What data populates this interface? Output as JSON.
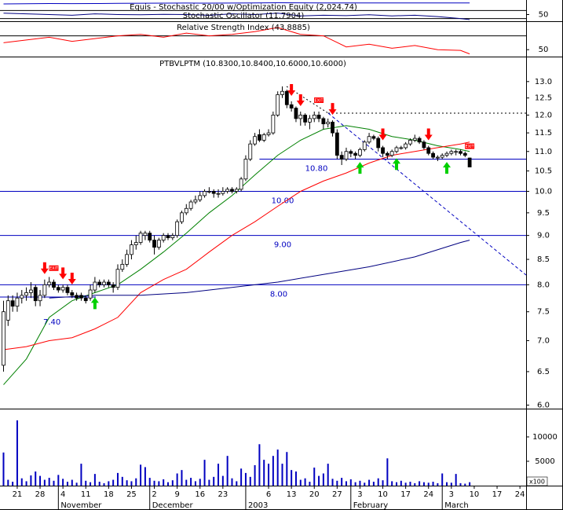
{
  "chart_data": {
    "type": "candlestick",
    "title": "PTBVLPTM (10.8300,10.8400,10.6000,10.6000)",
    "log_scale": true,
    "up_color": "#ffffff",
    "down_color": "#000000",
    "xlim": [
      -0.77,
      114.35
    ],
    "ylim": [
      5.95,
      13.8
    ],
    "yticks": [
      {
        "value": 6,
        "label": "6.0"
      },
      {
        "value": 6.5,
        "label": "6.5"
      },
      {
        "value": 7,
        "label": "7.0"
      },
      {
        "value": 7.5,
        "label": "7.5"
      },
      {
        "value": 8,
        "label": "8.0"
      },
      {
        "value": 8.5,
        "label": "8.5"
      },
      {
        "value": 9,
        "label": "9.0"
      },
      {
        "value": 9.5,
        "label": "9.5"
      },
      {
        "value": 10,
        "label": "10.0"
      },
      {
        "value": 10.5,
        "label": "10.5"
      },
      {
        "value": 11,
        "label": "11.0"
      },
      {
        "value": 11.5,
        "label": "11.5"
      },
      {
        "value": 12,
        "label": "12.0"
      },
      {
        "value": 12.5,
        "label": "12.5"
      },
      {
        "value": 13,
        "label": "13.0"
      }
    ],
    "xticks": [
      {
        "value": 3,
        "label": "21"
      },
      {
        "value": 8,
        "label": "28"
      },
      {
        "value": 13,
        "label": "4"
      },
      {
        "value": 18,
        "label": "11"
      },
      {
        "value": 23,
        "label": "18"
      },
      {
        "value": 28,
        "label": "25"
      },
      {
        "value": 33,
        "label": "2"
      },
      {
        "value": 38,
        "label": "9"
      },
      {
        "value": 43,
        "label": "16"
      },
      {
        "value": 48,
        "label": "23"
      },
      {
        "value": 58,
        "label": "6"
      },
      {
        "value": 63,
        "label": "13"
      },
      {
        "value": 68,
        "label": "20"
      },
      {
        "value": 73,
        "label": "27"
      },
      {
        "value": 78,
        "label": "3"
      },
      {
        "value": 83,
        "label": "10"
      },
      {
        "value": 88,
        "label": "17"
      },
      {
        "value": 93,
        "label": "24"
      },
      {
        "value": 98,
        "label": "3"
      },
      {
        "value": 103,
        "label": "10"
      },
      {
        "value": 108,
        "label": "17"
      },
      {
        "value": 113,
        "label": "24"
      }
    ],
    "month_labels": [
      {
        "value": 12,
        "label": "November"
      },
      {
        "value": 32,
        "label": "December"
      },
      {
        "value": 53,
        "label": "2003"
      },
      {
        "value": 76,
        "label": "February"
      },
      {
        "value": 96,
        "label": "March"
      }
    ],
    "open": [
      6.6,
      7.35,
      7.7,
      7.6,
      7.75,
      7.8,
      7.85,
      7.95,
      7.7,
      7.8,
      8.0,
      8.05,
      7.95,
      7.9,
      7.95,
      7.85,
      7.8,
      7.8,
      7.75,
      7.75,
      7.9,
      8.05,
      8.0,
      8.05,
      8.0,
      7.95,
      8.3,
      8.4,
      8.6,
      8.8,
      8.85,
      9.0,
      9.05,
      8.9,
      8.75,
      8.9,
      9.0,
      8.95,
      9.0,
      9.3,
      9.5,
      9.6,
      9.75,
      9.8,
      9.9,
      10.0,
      10.0,
      9.95,
      9.95,
      10.0,
      10.05,
      10.0,
      10.05,
      10.3,
      10.8,
      11.2,
      11.45,
      11.3,
      11.45,
      11.5,
      12.0,
      12.6,
      12.7,
      12.3,
      12.2,
      11.9,
      12.0,
      11.8,
      11.9,
      12.0,
      11.9,
      11.75,
      11.8,
      11.5,
      10.9,
      10.8,
      11.0,
      10.95,
      10.9,
      11.05,
      11.25,
      11.4,
      11.35,
      11.1,
      10.95,
      10.9,
      11.0,
      11.1,
      11.1,
      11.2,
      11.3,
      11.35,
      11.25,
      11.1,
      10.95,
      10.85,
      10.85,
      10.9,
      10.95,
      11.0,
      11.0,
      10.95,
      10.83
    ],
    "high": [
      7.7,
      7.8,
      7.8,
      7.85,
      7.9,
      7.95,
      8.05,
      8.0,
      7.9,
      8.1,
      8.15,
      8.1,
      8.0,
      8.0,
      8.0,
      7.9,
      7.85,
      7.85,
      7.8,
      8.0,
      8.15,
      8.1,
      8.1,
      8.1,
      8.05,
      8.4,
      8.5,
      8.7,
      8.9,
      9.0,
      9.1,
      9.1,
      9.1,
      9.0,
      8.95,
      9.05,
      9.05,
      9.05,
      9.35,
      9.55,
      9.7,
      9.8,
      9.9,
      10.0,
      10.05,
      10.1,
      10.05,
      10.05,
      10.1,
      10.1,
      10.1,
      10.1,
      10.35,
      10.9,
      11.3,
      11.5,
      11.6,
      11.5,
      11.6,
      12.1,
      12.7,
      12.85,
      12.75,
      12.4,
      12.25,
      12.1,
      12.05,
      12.0,
      12.1,
      12.1,
      11.95,
      11.9,
      11.85,
      11.6,
      11.0,
      11.1,
      11.05,
      11.0,
      11.1,
      11.3,
      11.5,
      11.45,
      11.4,
      11.15,
      11.0,
      11.05,
      11.15,
      11.15,
      11.25,
      11.35,
      11.45,
      11.4,
      11.3,
      11.15,
      11.0,
      10.9,
      10.95,
      11.0,
      11.05,
      11.05,
      11.05,
      11.0,
      10.84
    ],
    "low": [
      6.5,
      7.25,
      7.5,
      7.5,
      7.65,
      7.7,
      7.75,
      7.6,
      7.6,
      7.75,
      7.95,
      7.9,
      7.85,
      7.85,
      7.8,
      7.75,
      7.7,
      7.7,
      7.65,
      7.7,
      7.85,
      7.95,
      7.95,
      7.95,
      7.85,
      7.9,
      8.25,
      8.35,
      8.5,
      8.7,
      8.8,
      8.9,
      8.85,
      8.6,
      8.7,
      8.85,
      8.9,
      8.9,
      8.95,
      9.25,
      9.45,
      9.55,
      9.7,
      9.75,
      9.85,
      9.95,
      9.85,
      9.85,
      9.9,
      9.95,
      9.95,
      9.95,
      10.0,
      10.25,
      10.75,
      11.15,
      11.25,
      11.25,
      11.4,
      11.45,
      11.95,
      12.5,
      12.2,
      12.1,
      11.8,
      11.7,
      11.7,
      11.6,
      11.8,
      11.8,
      11.6,
      11.65,
      11.4,
      10.8,
      10.65,
      10.75,
      10.85,
      10.8,
      10.85,
      11.0,
      11.2,
      11.3,
      11.0,
      10.85,
      10.8,
      10.85,
      10.95,
      11.05,
      11.05,
      11.15,
      11.25,
      11.2,
      11.05,
      10.9,
      10.8,
      10.75,
      10.8,
      10.85,
      10.9,
      10.9,
      10.9,
      10.85,
      10.6
    ],
    "close": [
      7.5,
      7.7,
      7.6,
      7.75,
      7.8,
      7.85,
      7.9,
      7.7,
      7.8,
      8.0,
      8.05,
      7.95,
      7.9,
      7.95,
      7.85,
      7.8,
      7.75,
      7.75,
      7.7,
      7.9,
      8.05,
      8.0,
      8.05,
      8.0,
      7.95,
      8.3,
      8.4,
      8.6,
      8.8,
      8.85,
      9.05,
      9.05,
      8.9,
      8.75,
      8.9,
      9.0,
      8.95,
      9.0,
      9.3,
      9.5,
      9.6,
      9.75,
      9.8,
      9.9,
      10.0,
      10.0,
      9.95,
      9.95,
      10.0,
      10.05,
      10.0,
      10.05,
      10.3,
      10.8,
      11.2,
      11.4,
      11.3,
      11.45,
      11.5,
      12.0,
      12.6,
      12.7,
      12.3,
      12.2,
      11.9,
      12.0,
      11.8,
      11.9,
      12.0,
      11.9,
      11.75,
      11.8,
      11.5,
      10.9,
      10.8,
      11.0,
      10.95,
      10.9,
      11.05,
      11.25,
      11.4,
      11.35,
      11.1,
      10.95,
      10.9,
      11.0,
      11.1,
      11.1,
      11.2,
      11.3,
      11.35,
      11.25,
      11.1,
      10.95,
      10.85,
      10.85,
      10.9,
      10.95,
      11.0,
      11.0,
      10.95,
      10.9,
      10.6
    ],
    "moving_averages": [
      {
        "color": "#008000",
        "x": [
          0,
          5,
          10,
          15,
          20,
          25,
          30,
          35,
          40,
          45,
          50,
          55,
          60,
          65,
          70,
          75,
          80,
          85,
          90,
          95,
          100,
          102
        ],
        "values": [
          6.3,
          6.7,
          7.4,
          7.7,
          7.85,
          8.0,
          8.3,
          8.65,
          9.05,
          9.5,
          9.9,
          10.4,
          10.9,
          11.3,
          11.6,
          11.7,
          11.6,
          11.4,
          11.3,
          11.15,
          11.05,
          11.0
        ]
      },
      {
        "color": "#ff0000",
        "x": [
          0,
          5,
          10,
          15,
          20,
          25,
          30,
          35,
          40,
          45,
          50,
          55,
          60,
          65,
          70,
          75,
          80,
          85,
          90,
          95,
          100,
          102
        ],
        "values": [
          6.85,
          6.9,
          7.0,
          7.05,
          7.2,
          7.4,
          7.85,
          8.1,
          8.3,
          8.65,
          9.0,
          9.3,
          9.65,
          10.0,
          10.25,
          10.45,
          10.7,
          10.9,
          11.0,
          11.1,
          11.2,
          11.25
        ]
      },
      {
        "color": "#000080",
        "x": [
          10,
          20,
          30,
          40,
          50,
          60,
          70,
          80,
          90,
          100,
          102
        ],
        "values": [
          7.75,
          7.8,
          7.8,
          7.85,
          7.95,
          8.05,
          8.2,
          8.35,
          8.55,
          8.85,
          8.9
        ]
      }
    ],
    "level_color": "#0000c0",
    "levels": [
      {
        "value": 10.8,
        "label": "10.80",
        "start": 56
      },
      {
        "value": 10,
        "label": "10.00",
        "start": -0.77
      },
      {
        "value": 9,
        "label": "9.00",
        "start": -0.77
      },
      {
        "value": 8,
        "label": "8.00",
        "start": -0.77
      }
    ],
    "annotations": [
      "7.40"
    ],
    "signals": {
      "buy": [
        20,
        78,
        86,
        97
      ],
      "sell": [
        9,
        13,
        15,
        63,
        65,
        72,
        83,
        93
      ],
      "exit": [
        11,
        69,
        102
      ],
      "exit_label": "EXIT",
      "buy_color": "#00d000",
      "sell_color": "#ff0000"
    },
    "volume": {
      "color": "#0000c0",
      "ylim": [
        0,
        15800
      ],
      "yticks": [
        5000,
        10000
      ],
      "unit_label": "x100",
      "values": [
        6800,
        1200,
        800,
        13400,
        1500,
        900,
        2100,
        2900,
        2000,
        1200,
        1600,
        1000,
        2200,
        1400,
        800,
        1200,
        600,
        4500,
        1000,
        700,
        2400,
        800,
        500,
        900,
        1200,
        2600,
        1800,
        1100,
        900,
        1500,
        4300,
        3800,
        1600,
        1000,
        900,
        1300,
        700,
        1100,
        2500,
        3200,
        1200,
        1600,
        900,
        1400,
        5300,
        1200,
        1800,
        4500,
        2000,
        6100,
        1500,
        900,
        3500,
        2600,
        1800,
        4200,
        8500,
        5300,
        4500,
        6100,
        7400,
        4500,
        6900,
        3200,
        2900,
        1200,
        1500,
        800,
        3700,
        2000,
        2500,
        4500,
        1400,
        1000,
        1600,
        900,
        1300,
        700,
        1000,
        600,
        1200,
        800,
        1500,
        1100,
        5600,
        900,
        700,
        1000,
        600,
        800,
        500,
        900,
        700,
        600,
        800,
        500,
        2500,
        700,
        600,
        2400,
        500,
        400,
        700
      ]
    },
    "indicators": [
      {
        "title": "Equis - Stochastic 20/00 w/Optimization Equity (2,024.74)",
        "color": "#0000c0",
        "ylim": [
          1900,
          2100
        ],
        "x": [
          0,
          5,
          10,
          15,
          20,
          25,
          30,
          35,
          40,
          45,
          50,
          55,
          60,
          65,
          70,
          75,
          80,
          85,
          90,
          95,
          100,
          102
        ],
        "values": [
          2000,
          2005,
          2010,
          2008,
          2010,
          2015,
          2018,
          2020,
          2022,
          2020,
          2022,
          2025,
          2030,
          2028,
          2026,
          2024,
          2025,
          2023,
          2024,
          2025,
          2024,
          2024.74
        ]
      },
      {
        "title": "Stochastic Oscillator (11.7904)",
        "color": "#000080",
        "ylim": [
          0,
          100
        ],
        "yticks": [
          50
        ],
        "guides": [
          80,
          20
        ],
        "x": [
          0,
          5,
          10,
          15,
          20,
          25,
          30,
          35,
          40,
          45,
          50,
          55,
          60,
          65,
          70,
          75,
          80,
          85,
          90,
          95,
          100,
          102
        ],
        "values": [
          60,
          55,
          50,
          45,
          55,
          50,
          48,
          52,
          50,
          45,
          55,
          50,
          60,
          40,
          45,
          42,
          48,
          40,
          45,
          35,
          20,
          11.7904
        ]
      },
      {
        "title": "Relative Strength Index (43.8885)",
        "color": "#ff0000",
        "ylim": [
          40,
          90
        ],
        "yticks": [
          50
        ],
        "guides": [
          70
        ],
        "x": [
          0,
          5,
          10,
          15,
          20,
          25,
          30,
          35,
          40,
          45,
          50,
          55,
          60,
          65,
          70,
          75,
          80,
          85,
          90,
          95,
          100,
          102
        ],
        "values": [
          60,
          64,
          68,
          62,
          66,
          70,
          72,
          68,
          74,
          70,
          72,
          76,
          82,
          72,
          70,
          54,
          58,
          52,
          56,
          50,
          49,
          43.8885
        ]
      }
    ]
  }
}
